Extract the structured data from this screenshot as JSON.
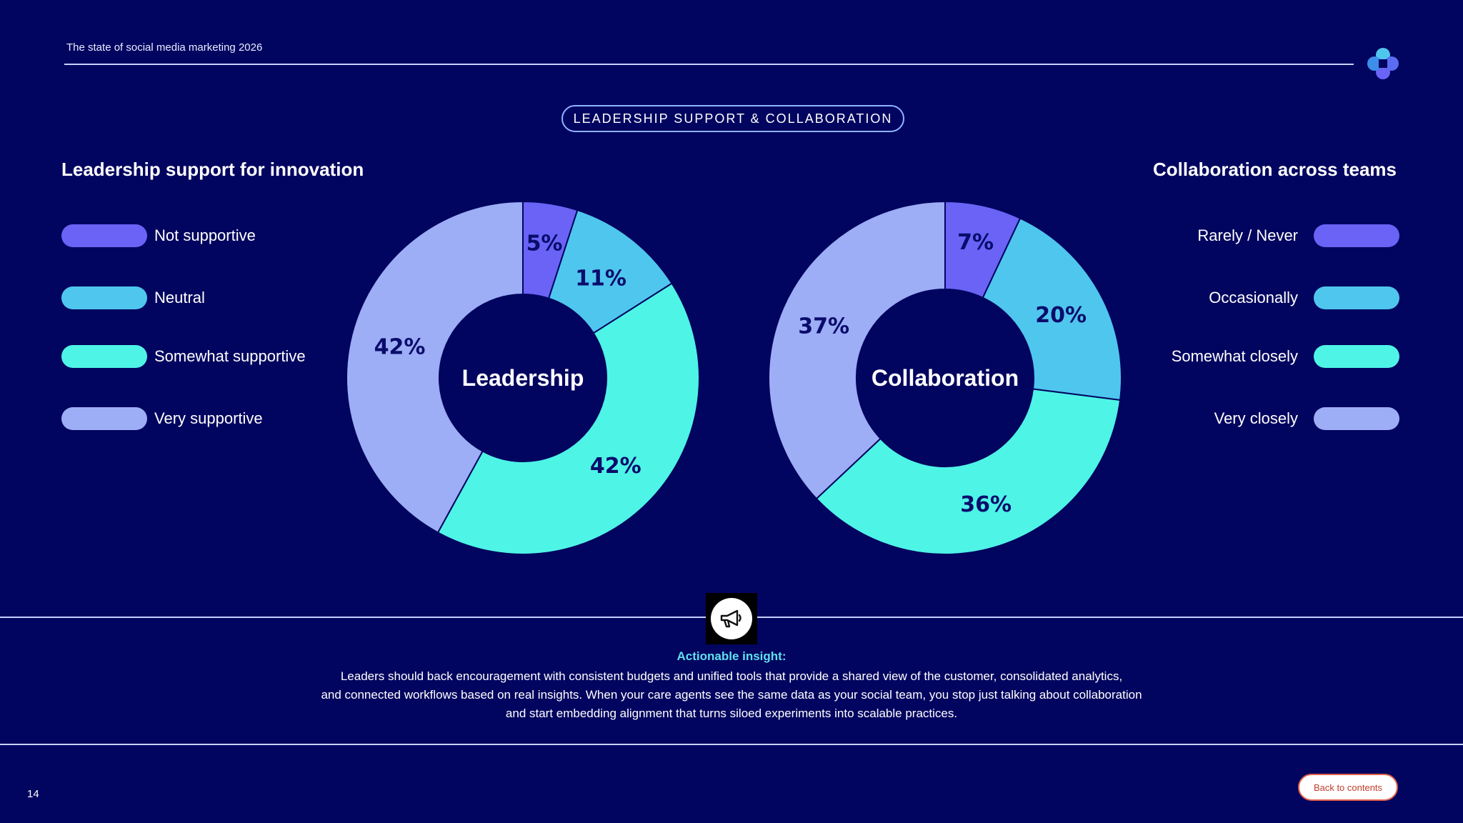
{
  "header": {
    "title": "The state of social media marketing 2026"
  },
  "section_pill": "LEADERSHIP SUPPORT & COLLABORATION",
  "colors": {
    "background": "#02055f",
    "not_supportive": "#6a63f6",
    "neutral": "#4fc6ee",
    "somewhat_supportive": "#4ef4e6",
    "very_supportive": "#9dadf6"
  },
  "chart_data": [
    {
      "type": "pie",
      "title": "Leadership support for innovation",
      "center_label": "Leadership",
      "categories": [
        "Not supportive",
        "Neutral",
        "Somewhat supportive",
        "Very supportive"
      ],
      "values": [
        5,
        11,
        42,
        42
      ],
      "value_labels": [
        "5%",
        "11%",
        "42%",
        "42%"
      ],
      "colors": [
        "#6a63f6",
        "#4fc6ee",
        "#4ef4e6",
        "#9dadf6"
      ],
      "legend_position": "left"
    },
    {
      "type": "pie",
      "title": "Collaboration across teams",
      "center_label": "Collaboration",
      "categories": [
        "Rarely / Never",
        "Occasionally",
        "Somewhat closely",
        "Very closely"
      ],
      "values": [
        7,
        20,
        36,
        37
      ],
      "value_labels": [
        "7%",
        "20%",
        "36%",
        "37%"
      ],
      "colors": [
        "#6a63f6",
        "#4fc6ee",
        "#4ef4e6",
        "#9dadf6"
      ],
      "legend_position": "right"
    }
  ],
  "insight": {
    "icon": "megaphone-icon",
    "heading": "Actionable insight:",
    "lines": [
      "Leaders should back encouragement with consistent budgets and unified tools that provide a shared view of the customer, consolidated analytics,",
      "and connected workflows based on real insights. When your care agents see the same data as your social team, you stop just talking about collaboration",
      "and start embedding alignment that turns siloed experiments into scalable practices."
    ]
  },
  "footer": {
    "page_number": "14",
    "back_button": "Back to contents"
  }
}
